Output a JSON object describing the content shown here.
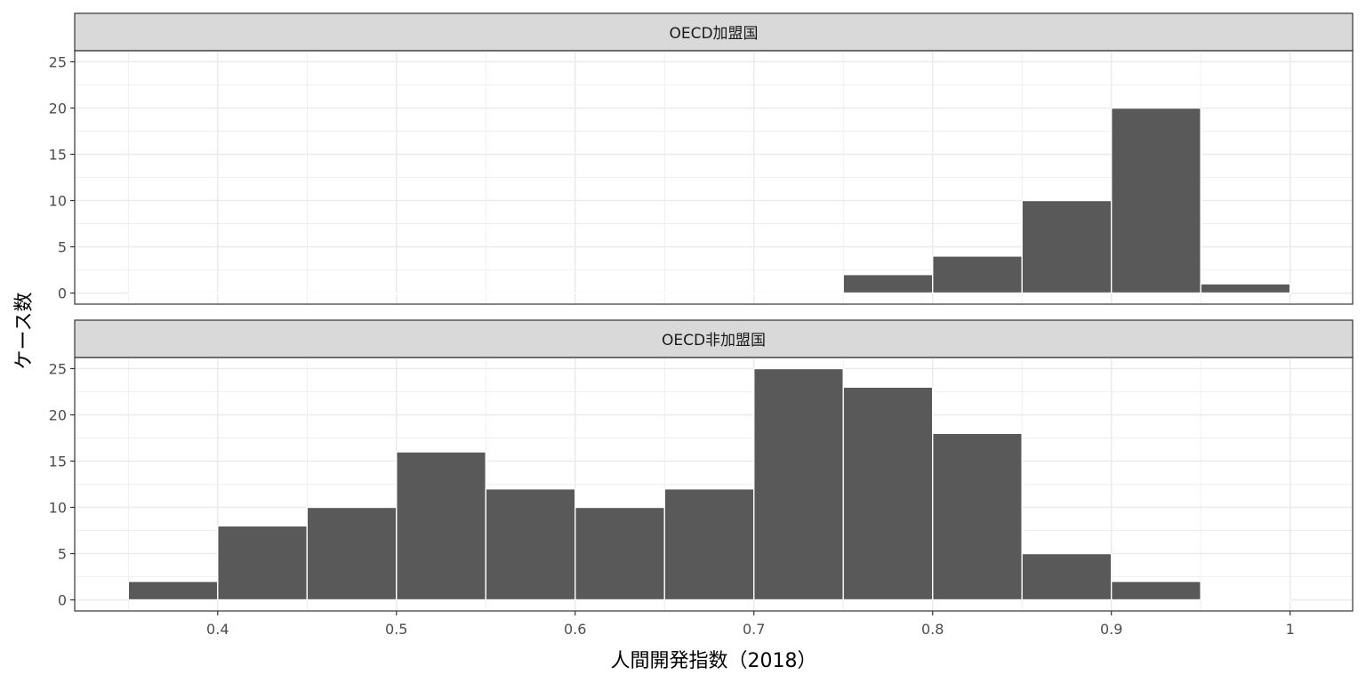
{
  "chart_data": {
    "type": "bar",
    "subtype": "histogram",
    "xlabel": "人間開発指数（2018）",
    "ylabel": "ケース数",
    "xlim": [
      0.32,
      1.035
    ],
    "ylim": [
      -1.2,
      26.2
    ],
    "xticks": [
      0.4,
      0.5,
      0.6,
      0.7,
      0.8,
      0.9,
      1.0
    ],
    "xtick_labels": [
      "0.4",
      "0.5",
      "0.6",
      "0.7",
      "0.8",
      "0.9",
      "1"
    ],
    "yticks": [
      0,
      5,
      10,
      15,
      20,
      25
    ],
    "bin_width": 0.05,
    "bin_starts": [
      0.35,
      0.4,
      0.45,
      0.5,
      0.55,
      0.6,
      0.65,
      0.7,
      0.75,
      0.8,
      0.85,
      0.9,
      0.95
    ],
    "grid": true,
    "theme": "bw",
    "colors": {
      "bar": "#595959",
      "bar_border": "#ffffff",
      "strip": "#d9d9d9",
      "grid": "#ebebeb",
      "panel_border": "#333333"
    },
    "panels": [
      {
        "label": "OECD加盟国",
        "values": [
          0,
          0,
          0,
          0,
          0,
          0,
          0,
          0,
          2,
          4,
          10,
          20,
          1
        ]
      },
      {
        "label": "OECD非加盟国",
        "values": [
          2,
          8,
          10,
          16,
          12,
          10,
          12,
          25,
          23,
          18,
          5,
          2,
          0
        ]
      }
    ]
  }
}
